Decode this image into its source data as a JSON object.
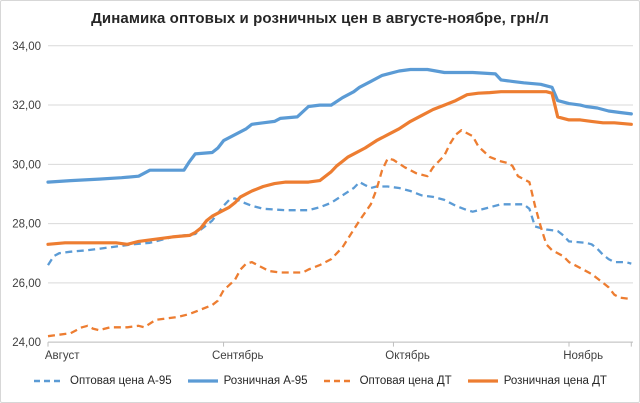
{
  "chart_data": {
    "type": "line",
    "title": "Динамика оптовых и розничных цен в августе-ноябре, грн/л",
    "xlabel": "",
    "ylabel": "грн/л",
    "ylim": [
      24,
      34
    ],
    "grid": "horizontal",
    "legend_position": "bottom",
    "palette": {
      "blue": "#5B9BD5",
      "orange": "#ED7D31",
      "gridline": "#D9D9D9",
      "axis_line": "#BFBFBF",
      "axis_text": "#404040",
      "title_text": "#262626"
    },
    "y_ticks": [
      {
        "value": 34,
        "label": "34,00"
      },
      {
        "value": 32,
        "label": "32,00"
      },
      {
        "value": 30,
        "label": "30,00"
      },
      {
        "value": 28,
        "label": "28,00"
      },
      {
        "value": 26,
        "label": "26,00"
      },
      {
        "value": 24,
        "label": "24,00"
      }
    ],
    "x_axis": {
      "unit": "days_from_aug_1",
      "range": [
        0,
        103
      ],
      "month_ticks": [
        {
          "day": 0,
          "label": "Август"
        },
        {
          "day": 31,
          "label": "Сентябрь"
        },
        {
          "day": 61,
          "label": "Октябрь"
        },
        {
          "day": 92,
          "label": "Ноябрь"
        }
      ]
    },
    "series": [
      {
        "name": "Оптовая цена А-95",
        "color": "#5B9BD5",
        "style": "dashed",
        "points": [
          [
            0,
            26.6
          ],
          [
            1,
            26.9
          ],
          [
            2,
            27.0
          ],
          [
            4,
            27.05
          ],
          [
            7,
            27.1
          ],
          [
            9,
            27.15
          ],
          [
            11,
            27.2
          ],
          [
            13,
            27.25
          ],
          [
            15,
            27.3
          ],
          [
            18,
            27.35
          ],
          [
            20,
            27.45
          ],
          [
            22,
            27.55
          ],
          [
            24,
            27.6
          ],
          [
            26,
            27.65
          ],
          [
            27,
            27.8
          ],
          [
            28,
            27.95
          ],
          [
            29,
            28.1
          ],
          [
            30,
            28.35
          ],
          [
            31,
            28.6
          ],
          [
            32,
            28.8
          ],
          [
            33,
            28.85
          ],
          [
            34,
            28.75
          ],
          [
            36,
            28.6
          ],
          [
            38,
            28.5
          ],
          [
            42,
            28.45
          ],
          [
            46,
            28.45
          ],
          [
            48,
            28.55
          ],
          [
            50,
            28.7
          ],
          [
            52,
            28.95
          ],
          [
            54,
            29.2
          ],
          [
            55,
            29.4
          ],
          [
            56,
            29.3
          ],
          [
            57,
            29.2
          ],
          [
            58,
            29.25
          ],
          [
            60,
            29.25
          ],
          [
            62,
            29.2
          ],
          [
            64,
            29.1
          ],
          [
            66,
            28.95
          ],
          [
            68,
            28.9
          ],
          [
            70,
            28.8
          ],
          [
            72,
            28.6
          ],
          [
            74,
            28.45
          ],
          [
            75,
            28.4
          ],
          [
            76,
            28.45
          ],
          [
            78,
            28.55
          ],
          [
            80,
            28.65
          ],
          [
            84,
            28.65
          ],
          [
            85,
            28.5
          ],
          [
            86,
            27.9
          ],
          [
            88,
            27.8
          ],
          [
            90,
            27.75
          ],
          [
            91,
            27.6
          ],
          [
            92,
            27.4
          ],
          [
            95,
            27.35
          ],
          [
            96,
            27.3
          ],
          [
            97,
            27.15
          ],
          [
            98,
            26.95
          ],
          [
            99,
            26.8
          ],
          [
            100,
            26.7
          ],
          [
            102,
            26.7
          ],
          [
            103,
            26.65
          ]
        ]
      },
      {
        "name": "Розничная А-95",
        "color": "#5B9BD5",
        "style": "solid",
        "points": [
          [
            0,
            29.4
          ],
          [
            4,
            29.45
          ],
          [
            9,
            29.5
          ],
          [
            13,
            29.55
          ],
          [
            16,
            29.6
          ],
          [
            18,
            29.8
          ],
          [
            24,
            29.8
          ],
          [
            25,
            30.1
          ],
          [
            26,
            30.35
          ],
          [
            29,
            30.4
          ],
          [
            30,
            30.55
          ],
          [
            31,
            30.8
          ],
          [
            33,
            31.0
          ],
          [
            35,
            31.2
          ],
          [
            36,
            31.35
          ],
          [
            38,
            31.4
          ],
          [
            40,
            31.45
          ],
          [
            41,
            31.55
          ],
          [
            44,
            31.6
          ],
          [
            46,
            31.95
          ],
          [
            48,
            32.0
          ],
          [
            50,
            32.0
          ],
          [
            52,
            32.25
          ],
          [
            54,
            32.45
          ],
          [
            55,
            32.6
          ],
          [
            57,
            32.8
          ],
          [
            59,
            33.0
          ],
          [
            60,
            33.05
          ],
          [
            62,
            33.15
          ],
          [
            64,
            33.2
          ],
          [
            67,
            33.2
          ],
          [
            70,
            33.1
          ],
          [
            75,
            33.1
          ],
          [
            79,
            33.05
          ],
          [
            80,
            32.85
          ],
          [
            82,
            32.8
          ],
          [
            84,
            32.75
          ],
          [
            87,
            32.7
          ],
          [
            89,
            32.6
          ],
          [
            90,
            32.15
          ],
          [
            92,
            32.05
          ],
          [
            94,
            32.0
          ],
          [
            95,
            31.95
          ],
          [
            97,
            31.9
          ],
          [
            99,
            31.8
          ],
          [
            101,
            31.75
          ],
          [
            103,
            31.7
          ]
        ]
      },
      {
        "name": "Оптовая цена ДТ",
        "color": "#ED7D31",
        "style": "dashed",
        "points": [
          [
            0,
            24.2
          ],
          [
            2,
            24.25
          ],
          [
            4,
            24.3
          ],
          [
            6,
            24.5
          ],
          [
            7,
            24.55
          ],
          [
            8,
            24.45
          ],
          [
            9,
            24.4
          ],
          [
            11,
            24.5
          ],
          [
            14,
            24.5
          ],
          [
            16,
            24.55
          ],
          [
            17,
            24.5
          ],
          [
            19,
            24.75
          ],
          [
            21,
            24.8
          ],
          [
            23,
            24.85
          ],
          [
            25,
            24.95
          ],
          [
            27,
            25.1
          ],
          [
            29,
            25.25
          ],
          [
            30,
            25.4
          ],
          [
            31,
            25.75
          ],
          [
            33,
            26.1
          ],
          [
            34,
            26.45
          ],
          [
            35,
            26.65
          ],
          [
            36,
            26.7
          ],
          [
            37,
            26.6
          ],
          [
            38,
            26.5
          ],
          [
            39,
            26.4
          ],
          [
            41,
            26.35
          ],
          [
            45,
            26.35
          ],
          [
            46,
            26.45
          ],
          [
            48,
            26.6
          ],
          [
            50,
            26.8
          ],
          [
            52,
            27.2
          ],
          [
            53,
            27.5
          ],
          [
            55,
            28.1
          ],
          [
            57,
            28.65
          ],
          [
            58,
            29.15
          ],
          [
            59,
            29.8
          ],
          [
            60,
            30.2
          ],
          [
            61,
            30.15
          ],
          [
            63,
            29.9
          ],
          [
            65,
            29.7
          ],
          [
            67,
            29.6
          ],
          [
            68,
            29.9
          ],
          [
            70,
            30.3
          ],
          [
            71,
            30.7
          ],
          [
            72,
            31.0
          ],
          [
            73,
            31.15
          ],
          [
            75,
            30.95
          ],
          [
            76,
            30.6
          ],
          [
            78,
            30.25
          ],
          [
            80,
            30.1
          ],
          [
            81,
            30.05
          ],
          [
            82,
            29.95
          ],
          [
            83,
            29.6
          ],
          [
            85,
            29.4
          ],
          [
            86,
            28.6
          ],
          [
            87,
            27.9
          ],
          [
            88,
            27.3
          ],
          [
            89,
            27.1
          ],
          [
            91,
            26.9
          ],
          [
            92,
            26.7
          ],
          [
            94,
            26.5
          ],
          [
            96,
            26.3
          ],
          [
            98,
            26.0
          ],
          [
            99,
            25.85
          ],
          [
            100,
            25.6
          ],
          [
            101,
            25.5
          ],
          [
            103,
            25.45
          ]
        ]
      },
      {
        "name": "Розничная цена ДТ",
        "color": "#ED7D31",
        "style": "solid",
        "points": [
          [
            0,
            27.3
          ],
          [
            3,
            27.35
          ],
          [
            8,
            27.35
          ],
          [
            12,
            27.35
          ],
          [
            14,
            27.3
          ],
          [
            16,
            27.4
          ],
          [
            18,
            27.45
          ],
          [
            20,
            27.5
          ],
          [
            22,
            27.55
          ],
          [
            25,
            27.6
          ],
          [
            26,
            27.7
          ],
          [
            27,
            27.85
          ],
          [
            28,
            28.1
          ],
          [
            29,
            28.25
          ],
          [
            30,
            28.35
          ],
          [
            31,
            28.45
          ],
          [
            32,
            28.55
          ],
          [
            33,
            28.7
          ],
          [
            34,
            28.9
          ],
          [
            35,
            29.0
          ],
          [
            36,
            29.1
          ],
          [
            38,
            29.25
          ],
          [
            40,
            29.35
          ],
          [
            42,
            29.4
          ],
          [
            46,
            29.4
          ],
          [
            48,
            29.45
          ],
          [
            50,
            29.75
          ],
          [
            51,
            29.95
          ],
          [
            52,
            30.1
          ],
          [
            53,
            30.25
          ],
          [
            54,
            30.35
          ],
          [
            56,
            30.55
          ],
          [
            58,
            30.8
          ],
          [
            60,
            31.0
          ],
          [
            62,
            31.2
          ],
          [
            64,
            31.45
          ],
          [
            66,
            31.65
          ],
          [
            68,
            31.85
          ],
          [
            70,
            32.0
          ],
          [
            72,
            32.15
          ],
          [
            74,
            32.35
          ],
          [
            76,
            32.4
          ],
          [
            78,
            32.42
          ],
          [
            80,
            32.45
          ],
          [
            84,
            32.45
          ],
          [
            88,
            32.45
          ],
          [
            89,
            32.4
          ],
          [
            90,
            31.6
          ],
          [
            91,
            31.55
          ],
          [
            92,
            31.5
          ],
          [
            94,
            31.5
          ],
          [
            96,
            31.45
          ],
          [
            98,
            31.4
          ],
          [
            100,
            31.4
          ],
          [
            103,
            31.35
          ]
        ]
      }
    ]
  }
}
